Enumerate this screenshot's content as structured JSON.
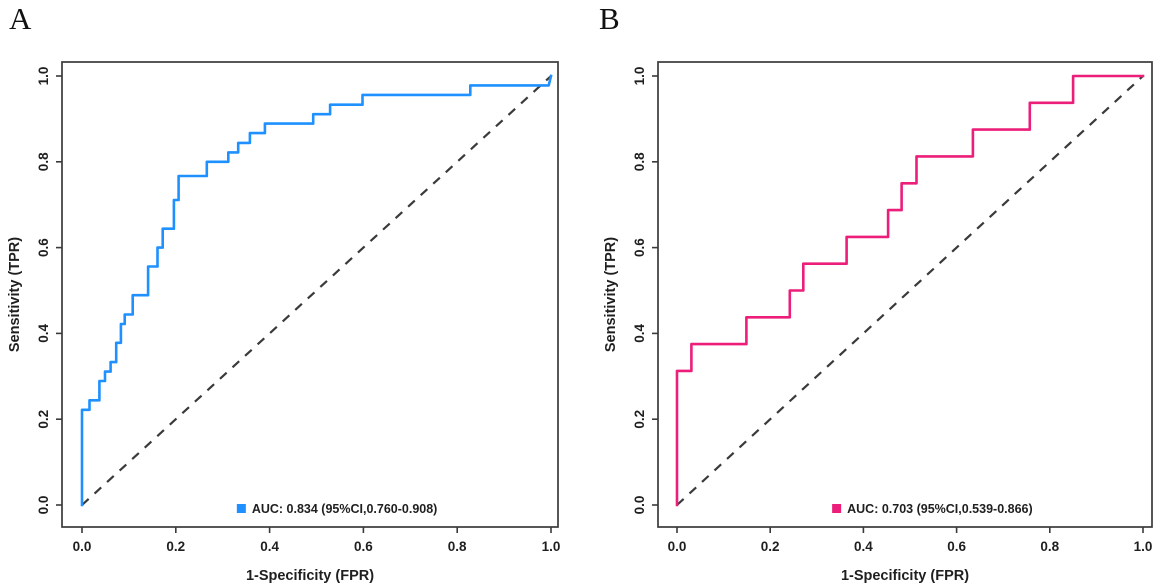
{
  "figure": {
    "background": "#ffffff",
    "text_color": "#1f1f1f",
    "frame_color": "#3a3a3a",
    "diagonal_color": "#3a3a3a"
  },
  "chart_data": [
    {
      "type": "line",
      "subtype": "roc-step",
      "panel_label": "A",
      "xlabel": "1-Specificity (FPR)",
      "ylabel": "Sensitivity (TPR)",
      "xlim": [
        0,
        1
      ],
      "ylim": [
        0,
        1
      ],
      "grid": false,
      "xticks": [
        "0.0",
        "0.2",
        "0.4",
        "0.6",
        "0.8",
        "1.0"
      ],
      "yticks": [
        "0.0",
        "0.2",
        "0.4",
        "0.6",
        "0.8",
        "1.0"
      ],
      "color": "#1E90FF",
      "auc": 0.834,
      "ci_95": "0.760-0.908",
      "legend": {
        "label": "AUC: 0.834 (95%CI,0.760-0.908)",
        "position": "bottom-center-inside",
        "marker": "square"
      },
      "reference_line": {
        "from": [
          0,
          0
        ],
        "to": [
          1,
          1
        ],
        "style": "dashed"
      },
      "roc_points": [
        [
          0,
          0
        ],
        [
          0,
          0.222
        ],
        [
          0.016,
          0.222
        ],
        [
          0.016,
          0.244
        ],
        [
          0.037,
          0.244
        ],
        [
          0.037,
          0.289
        ],
        [
          0.049,
          0.289
        ],
        [
          0.049,
          0.311
        ],
        [
          0.061,
          0.311
        ],
        [
          0.061,
          0.333
        ],
        [
          0.073,
          0.333
        ],
        [
          0.073,
          0.378
        ],
        [
          0.083,
          0.378
        ],
        [
          0.083,
          0.422
        ],
        [
          0.091,
          0.422
        ],
        [
          0.091,
          0.444
        ],
        [
          0.108,
          0.444
        ],
        [
          0.108,
          0.489
        ],
        [
          0.141,
          0.489
        ],
        [
          0.141,
          0.556
        ],
        [
          0.161,
          0.556
        ],
        [
          0.161,
          0.6
        ],
        [
          0.172,
          0.6
        ],
        [
          0.172,
          0.644
        ],
        [
          0.196,
          0.644
        ],
        [
          0.196,
          0.711
        ],
        [
          0.206,
          0.711
        ],
        [
          0.206,
          0.767
        ],
        [
          0.266,
          0.767
        ],
        [
          0.266,
          0.8
        ],
        [
          0.312,
          0.8
        ],
        [
          0.312,
          0.822
        ],
        [
          0.333,
          0.822
        ],
        [
          0.333,
          0.844
        ],
        [
          0.358,
          0.844
        ],
        [
          0.358,
          0.867
        ],
        [
          0.39,
          0.867
        ],
        [
          0.39,
          0.889
        ],
        [
          0.493,
          0.889
        ],
        [
          0.493,
          0.911
        ],
        [
          0.529,
          0.911
        ],
        [
          0.529,
          0.933
        ],
        [
          0.598,
          0.933
        ],
        [
          0.598,
          0.956
        ],
        [
          0.828,
          0.956
        ],
        [
          0.828,
          0.978
        ],
        [
          0.995,
          0.978
        ],
        [
          1,
          1
        ]
      ]
    },
    {
      "type": "line",
      "subtype": "roc-step",
      "panel_label": "B",
      "xlabel": "1-Specificity (FPR)",
      "ylabel": "Sensitivity (TPR)",
      "xlim": [
        0,
        1
      ],
      "ylim": [
        0,
        1
      ],
      "grid": false,
      "xticks": [
        "0.0",
        "0.2",
        "0.4",
        "0.6",
        "0.8",
        "1.0"
      ],
      "yticks": [
        "0.0",
        "0.2",
        "0.4",
        "0.6",
        "0.8",
        "1.0"
      ],
      "color": "#EC1E79",
      "auc": 0.703,
      "ci_95": "0.539-0.866",
      "legend": {
        "label": "AUC: 0.703 (95%CI,0.539-0.866)",
        "position": "bottom-center-inside",
        "marker": "square"
      },
      "reference_line": {
        "from": [
          0,
          0
        ],
        "to": [
          1,
          1
        ],
        "style": "dashed"
      },
      "roc_points": [
        [
          0,
          0
        ],
        [
          0,
          0.3125
        ],
        [
          0.031,
          0.3125
        ],
        [
          0.031,
          0.375
        ],
        [
          0.149,
          0.375
        ],
        [
          0.149,
          0.4375
        ],
        [
          0.242,
          0.4375
        ],
        [
          0.242,
          0.5
        ],
        [
          0.271,
          0.5
        ],
        [
          0.271,
          0.5625
        ],
        [
          0.364,
          0.5625
        ],
        [
          0.364,
          0.625
        ],
        [
          0.453,
          0.625
        ],
        [
          0.453,
          0.6875
        ],
        [
          0.482,
          0.6875
        ],
        [
          0.482,
          0.75
        ],
        [
          0.514,
          0.75
        ],
        [
          0.514,
          0.8125
        ],
        [
          0.635,
          0.8125
        ],
        [
          0.635,
          0.875
        ],
        [
          0.757,
          0.875
        ],
        [
          0.757,
          0.9375
        ],
        [
          0.85,
          0.9375
        ],
        [
          0.85,
          1.0
        ],
        [
          1,
          1
        ]
      ]
    }
  ]
}
